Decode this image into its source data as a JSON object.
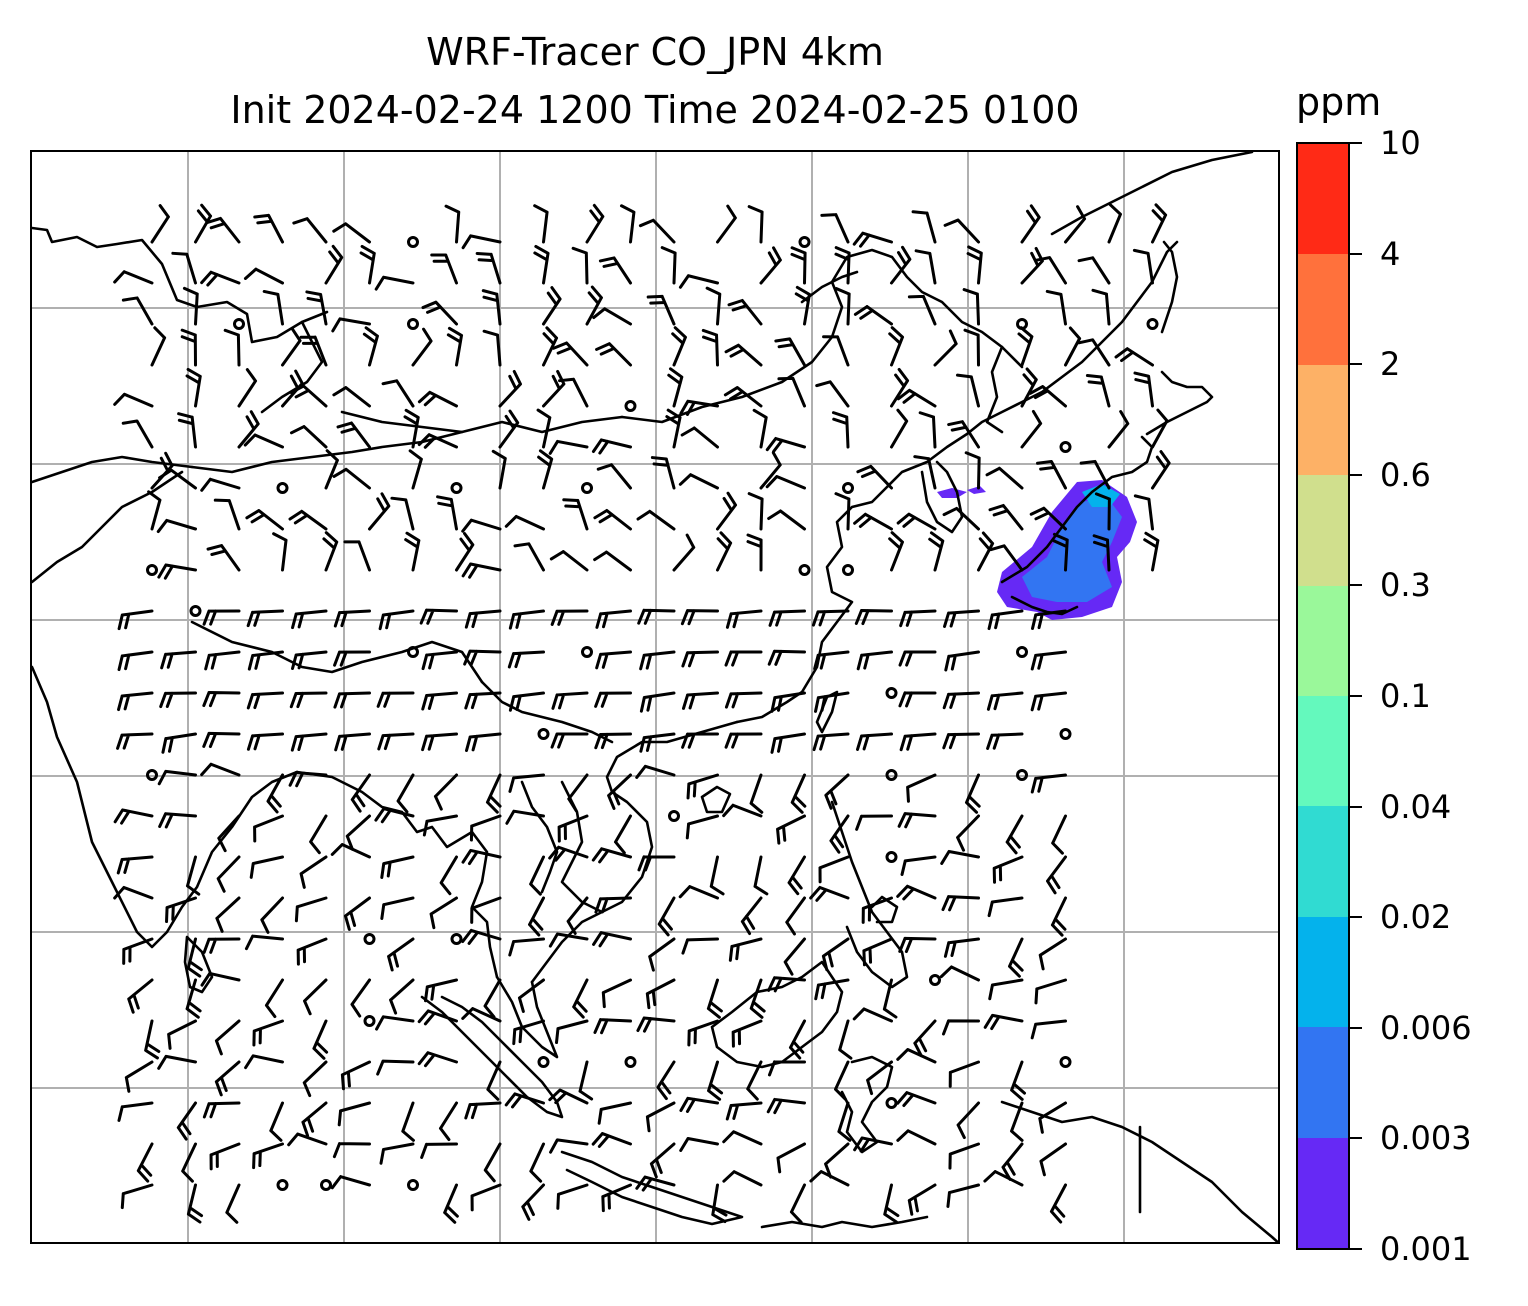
{
  "title_line1": "WRF-Tracer CO_JPN 4km",
  "title_line2": "Init 2024-02-24 1200 Time 2024-02-25 0100",
  "colorbar": {
    "unit": "ppm",
    "levels": [
      "0.001",
      "0.003",
      "0.006",
      "0.02",
      "0.04",
      "0.1",
      "0.3",
      "0.6",
      "2",
      "4",
      "10"
    ],
    "colors": [
      "#6629f5",
      "#3275f2",
      "#04b2ec",
      "#30dbd2",
      "#64f9bd",
      "#9af89a",
      "#d0df8d",
      "#fdb166",
      "#ff713c",
      "#ff2a16"
    ]
  },
  "map": {
    "grid_color": "#b0b0b0",
    "coast_color": "#000000",
    "tracer_plume_colors": [
      "#6629f5",
      "#3275f2",
      "#04b2ec"
    ]
  }
}
